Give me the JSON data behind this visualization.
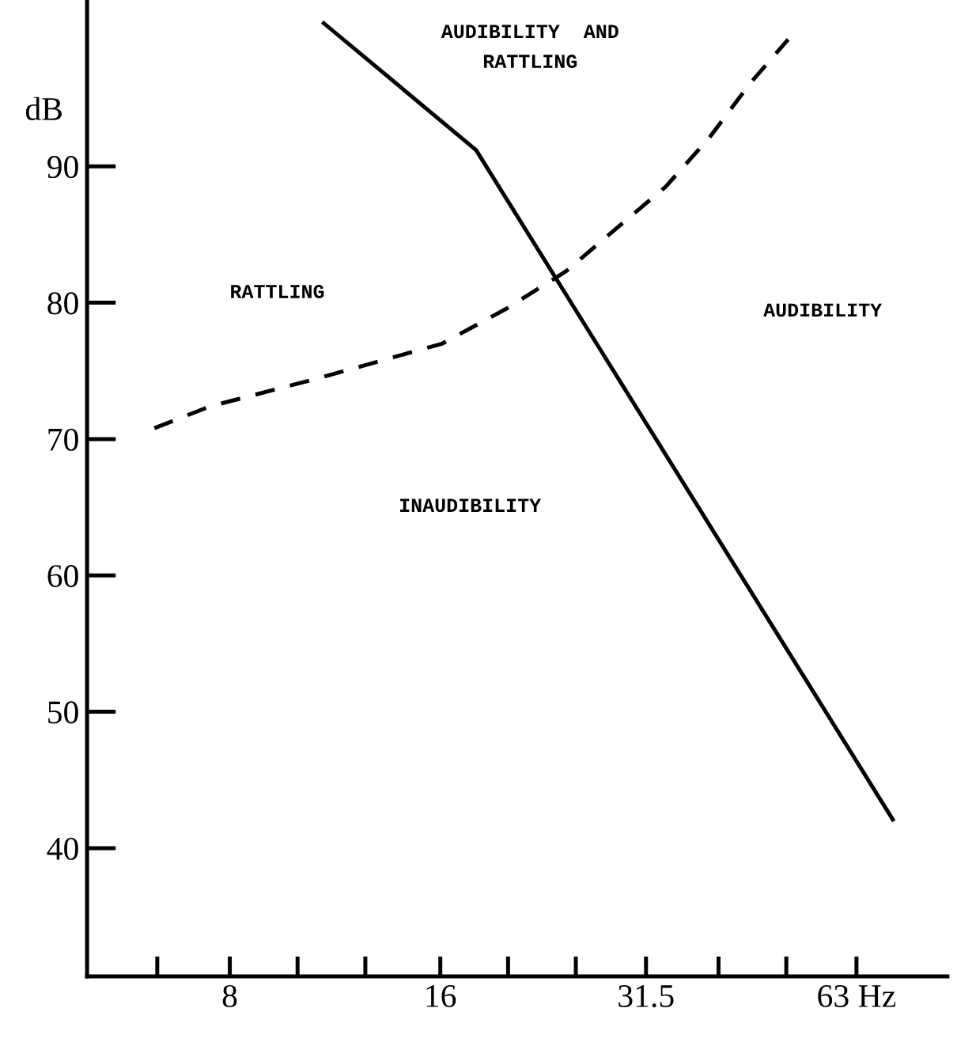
{
  "chart_data": {
    "type": "line",
    "ylabel": "dB",
    "log": "x",
    "xlim": [
      5,
      85
    ],
    "ylim": [
      30.6,
      102.2
    ],
    "xticks": [
      {
        "value": 6.3,
        "label": null
      },
      8,
      {
        "value": 10,
        "label": null
      },
      {
        "value": 12.5,
        "label": null
      },
      16,
      {
        "value": 20,
        "label": null
      },
      {
        "value": 25,
        "label": null
      },
      31.5,
      {
        "value": 40,
        "label": null
      },
      {
        "value": 50,
        "label": null
      },
      {
        "value": 63,
        "label": "63 Hz"
      }
    ],
    "yticks": [
      40,
      50,
      60,
      70,
      80,
      90
    ],
    "grid": false,
    "legend": false,
    "marker": "none",
    "series": [
      {
        "color": "#000000",
        "line_style": "solid",
        "x": [
          10.9,
          18,
          71
        ],
        "values": [
          100.5,
          91.2,
          42.1
        ]
      },
      {
        "color": "#000000",
        "line_style": "dashed",
        "x": [
          6.24,
          7.5,
          10.6,
          16.1,
          19.95,
          24.2,
          28.8,
          33.6,
          38.8,
          44.4,
          50.3
        ],
        "values": [
          70.8,
          72.4,
          74.4,
          77,
          79.6,
          82.3,
          85.6,
          88.5,
          92.1,
          96.1,
          99.3
        ]
      }
    ],
    "annotations": [
      "AUDIBILITY  AND\nRATTLING",
      "RATTLING",
      "AUDIBILITY",
      "INAUDIBILITY"
    ]
  }
}
